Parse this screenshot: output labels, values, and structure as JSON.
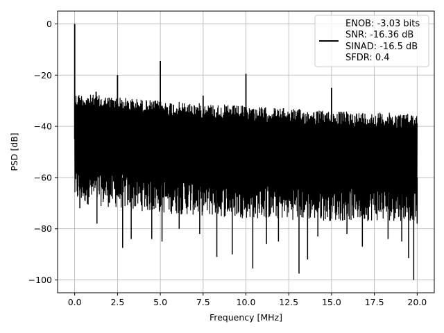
{
  "chart_data": {
    "type": "line",
    "title": "",
    "xlabel": "Frequency [MHz]",
    "ylabel": "PSD [dB]",
    "xlim": [
      -1.0,
      21.0
    ],
    "ylim": [
      -105,
      5
    ],
    "x_ticks": [
      0.0,
      2.5,
      5.0,
      7.5,
      10.0,
      12.5,
      15.0,
      17.5,
      20.0
    ],
    "x_tick_labels": [
      "0.0",
      "2.5",
      "5.0",
      "7.5",
      "10.0",
      "12.5",
      "15.0",
      "17.5",
      "20.0"
    ],
    "y_ticks": [
      0,
      -20,
      -40,
      -60,
      -80,
      -100
    ],
    "y_tick_labels": [
      "0",
      "−20",
      "−40",
      "−60",
      "−80",
      "−100"
    ],
    "grid": true,
    "legend_position": "top-right",
    "legend_lines": [
      "ENOB: -3.03 bits",
      "SNR: -16.36 dB",
      "SINAD: -16.5 dB",
      "SFDR: 0.4"
    ],
    "series_color": "#000000",
    "noise_band": {
      "x_range": [
        0.0,
        20.0
      ],
      "upper_envelope": [
        [
          0.0,
          -27
        ],
        [
          5.0,
          -30
        ],
        [
          10.0,
          -32
        ],
        [
          15.0,
          -34
        ],
        [
          20.0,
          -35
        ]
      ],
      "typical_lower": [
        [
          0.0,
          -70
        ],
        [
          5.0,
          -74
        ],
        [
          10.0,
          -76
        ],
        [
          15.0,
          -77
        ],
        [
          20.0,
          -77
        ]
      ]
    },
    "spurs": [
      {
        "x": 0.0,
        "y": 0
      },
      {
        "x": 2.5,
        "y": -20
      },
      {
        "x": 5.0,
        "y": -14.5
      },
      {
        "x": 7.5,
        "y": -28
      },
      {
        "x": 10.0,
        "y": -19.5
      },
      {
        "x": 15.0,
        "y": -25
      },
      {
        "x": 1.25,
        "y": -26.5
      }
    ],
    "dips": [
      {
        "x": 0.3,
        "y": -72
      },
      {
        "x": 1.3,
        "y": -78
      },
      {
        "x": 2.8,
        "y": -87.5
      },
      {
        "x": 3.3,
        "y": -84
      },
      {
        "x": 4.5,
        "y": -84
      },
      {
        "x": 5.1,
        "y": -85
      },
      {
        "x": 6.1,
        "y": -80
      },
      {
        "x": 7.3,
        "y": -82
      },
      {
        "x": 8.3,
        "y": -91
      },
      {
        "x": 9.2,
        "y": -90
      },
      {
        "x": 10.4,
        "y": -95.5
      },
      {
        "x": 11.2,
        "y": -86
      },
      {
        "x": 11.9,
        "y": -85
      },
      {
        "x": 13.1,
        "y": -97.5
      },
      {
        "x": 13.6,
        "y": -92
      },
      {
        "x": 14.2,
        "y": -83
      },
      {
        "x": 15.9,
        "y": -82
      },
      {
        "x": 16.8,
        "y": -87
      },
      {
        "x": 18.3,
        "y": -84
      },
      {
        "x": 19.1,
        "y": -85
      },
      {
        "x": 19.5,
        "y": -91.5
      },
      {
        "x": 19.8,
        "y": -100
      },
      {
        "x": 20.0,
        "y": -78
      }
    ]
  }
}
